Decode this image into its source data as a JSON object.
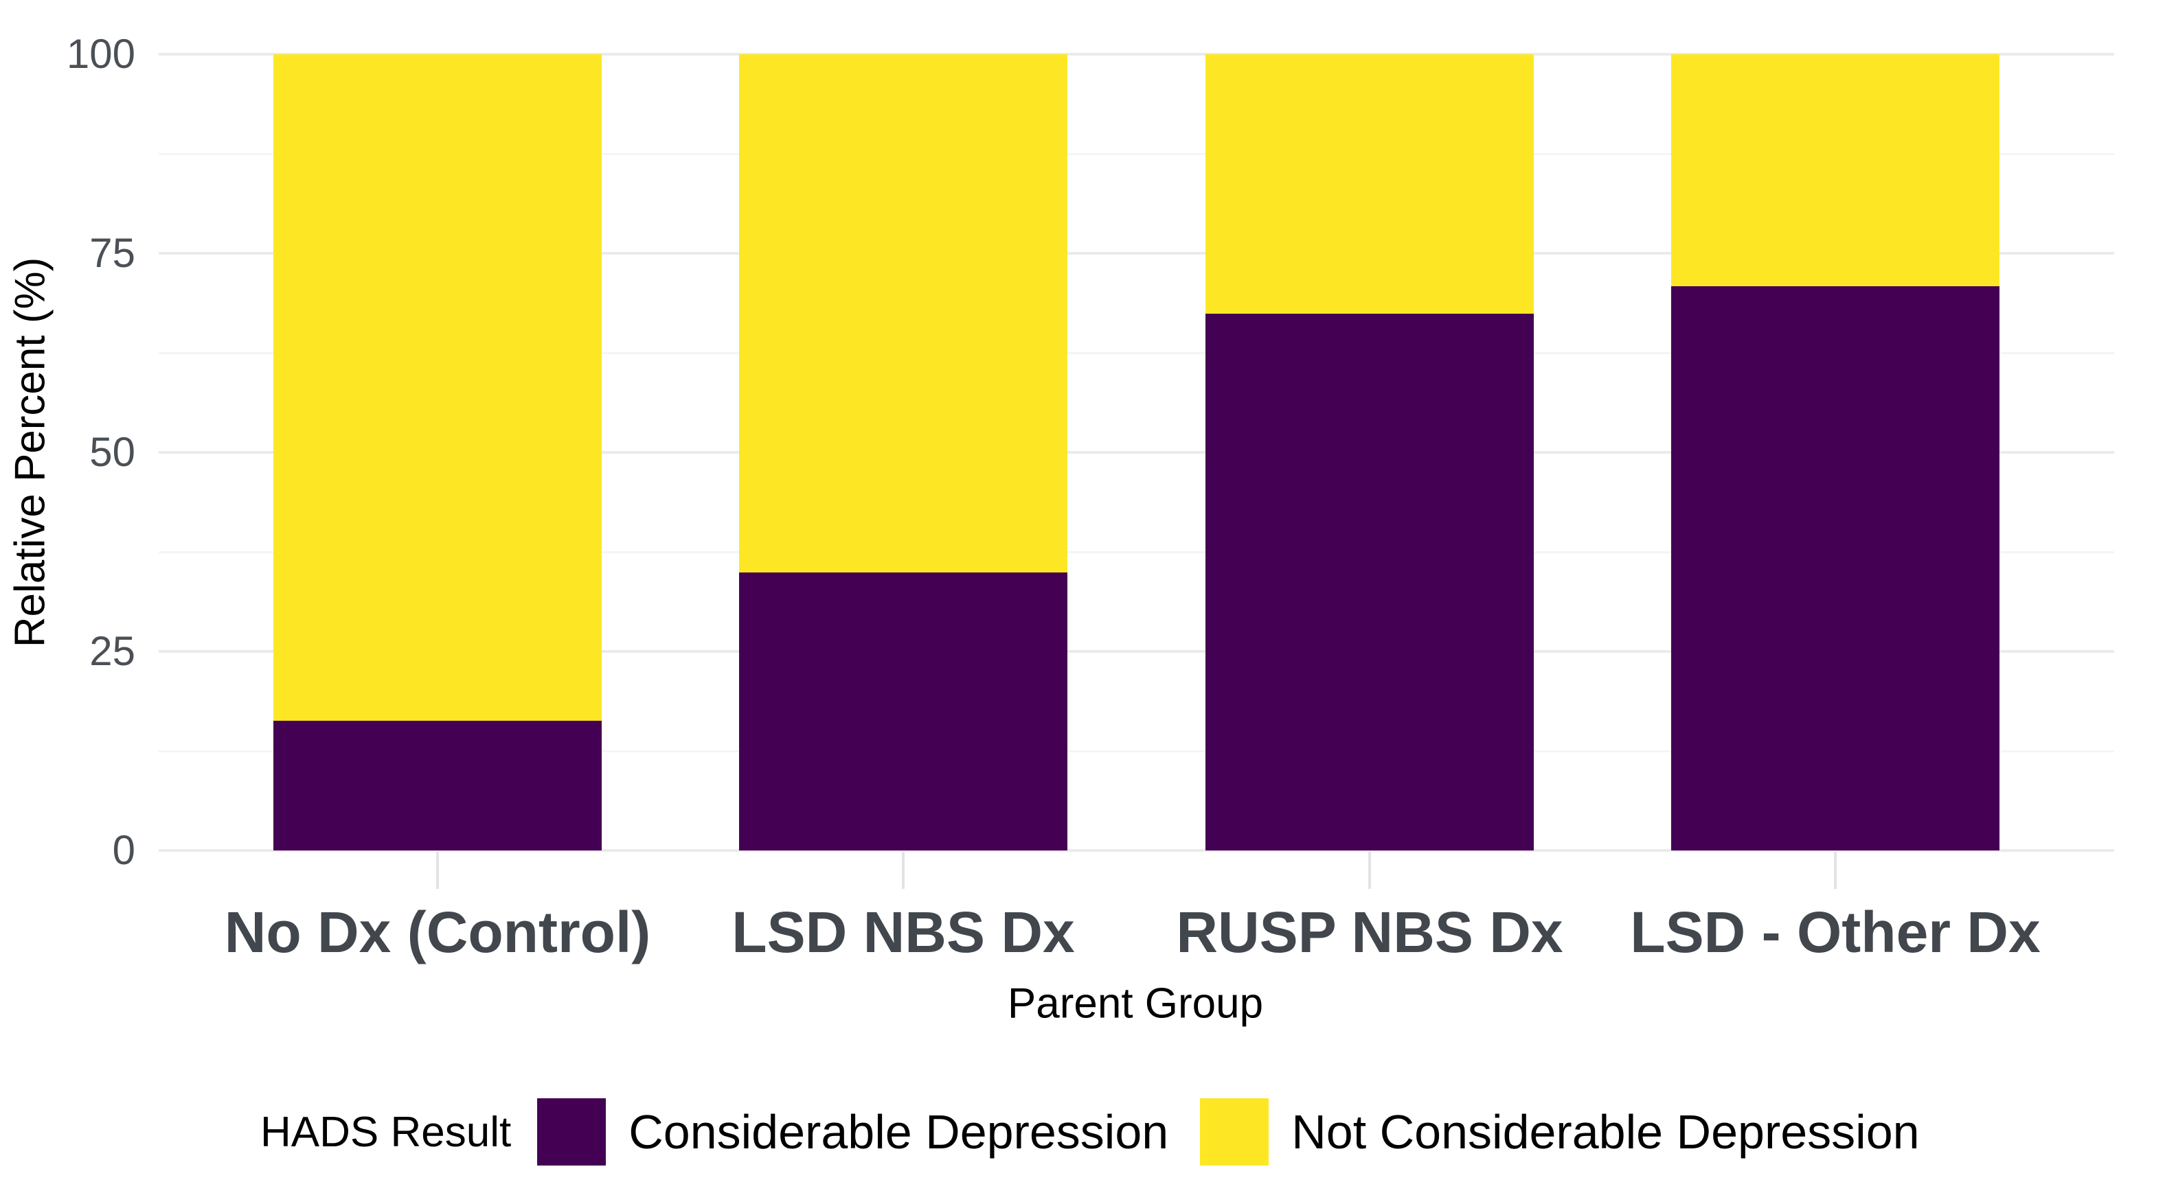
{
  "chart_data": {
    "type": "bar",
    "variant": "stacked-percent",
    "title": "",
    "xlabel": "Parent Group",
    "ylabel": "Relative Percent (%)",
    "categories": [
      "No Dx (Control)",
      "LSD NBS Dx",
      "RUSP NBS Dx",
      "LSD - Other Dx"
    ],
    "series": [
      {
        "name": "Considerable Depression",
        "color": "#440154",
        "values": [
          16.3,
          34.9,
          67.4,
          70.9
        ]
      },
      {
        "name": "Not Considerable Depression",
        "color": "#FDE725",
        "values": [
          83.7,
          65.1,
          32.6,
          29.1
        ]
      }
    ],
    "ylim": [
      0,
      100
    ],
    "y_ticks": [
      0,
      25,
      50,
      75,
      100
    ],
    "y_minor_ticks": [
      12.5,
      37.5,
      62.5,
      87.5
    ],
    "grid": "horizontal-major-and-minor",
    "legend": {
      "title": "HADS Result",
      "position": "bottom"
    }
  },
  "colors": {
    "background": "#FFFFFF",
    "major_gridline": "#EBEBEB",
    "minor_gridline": "#F5F5F5",
    "x_tick_mark": "#E3E3E3",
    "axis_tick_text": "#4B5056",
    "x_category_text": "#42474D",
    "axis_title_text": "#000000",
    "series_considerable_depression": "#440154",
    "series_not_considerable_depression": "#FDE725"
  }
}
